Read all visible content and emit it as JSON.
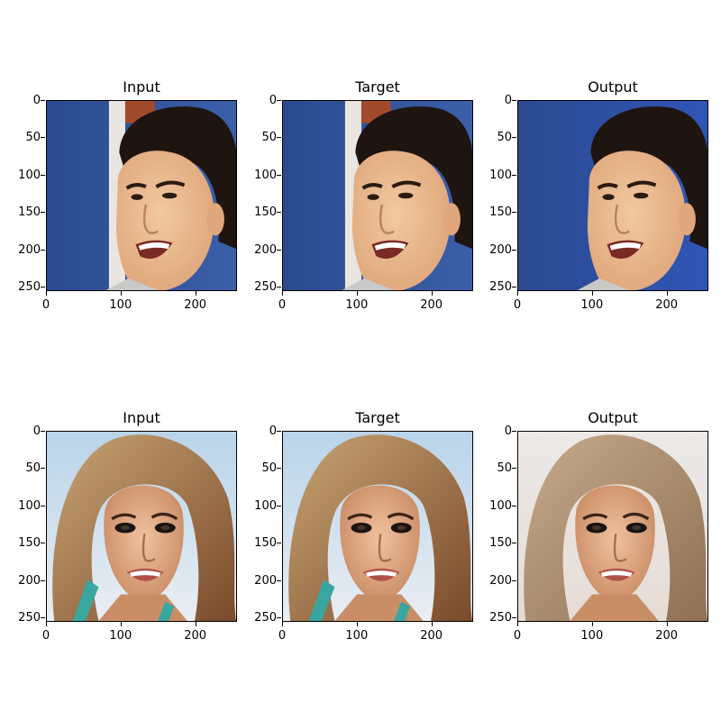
{
  "figure": {
    "panels": [
      {
        "title": "Input",
        "subject": "man",
        "variant": "input"
      },
      {
        "title": "Target",
        "subject": "man",
        "variant": "target"
      },
      {
        "title": "Output",
        "subject": "man",
        "variant": "output"
      },
      {
        "title": "Input",
        "subject": "woman",
        "variant": "input"
      },
      {
        "title": "Target",
        "subject": "woman",
        "variant": "target"
      },
      {
        "title": "Output",
        "subject": "woman",
        "variant": "output"
      }
    ],
    "y_ticks": [
      "0",
      "50",
      "100",
      "150",
      "200",
      "250"
    ],
    "x_ticks": [
      "0",
      "100",
      "200"
    ]
  },
  "colors": {
    "background_blue": "#3a5fa8",
    "background_blue_dark": "#2b4a90",
    "skin_light": "#f2c9a0",
    "skin_mid": "#e0a77c",
    "hair_dark": "#1e1410",
    "hair_blonde": "#c8a574",
    "sky": "#b9d4ea",
    "teal": "#3aa6a0"
  }
}
